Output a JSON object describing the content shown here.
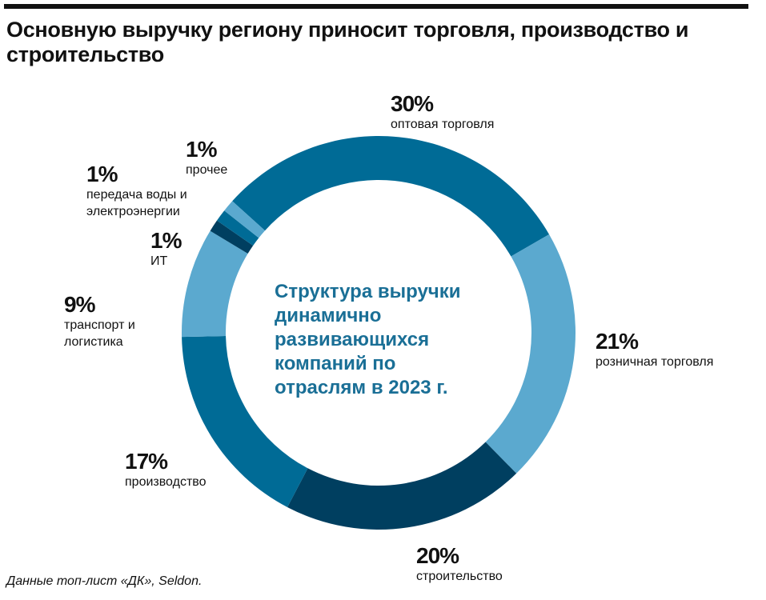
{
  "title": "Основную выручку региону приносит торговля, производство и строительство",
  "source": "Данные топ-лист «ДК», Seldon.",
  "chart_data": {
    "type": "pie",
    "donut": true,
    "center_label": "Структура выручки динамично развивающихся компаний по отраслям в 2023 г.",
    "slices": [
      {
        "label": "оптовая торговля",
        "value": 30,
        "value_label": "30%",
        "color": "#006b96"
      },
      {
        "label": "розничная торговля",
        "value": 21,
        "value_label": "21%",
        "color": "#5ba9cf"
      },
      {
        "label": "строительство",
        "value": 20,
        "value_label": "20%",
        "color": "#003f60"
      },
      {
        "label": "производство",
        "value": 17,
        "value_label": "17%",
        "color": "#006b96"
      },
      {
        "label": "транспорт и логистика",
        "value": 9,
        "value_label": "9%",
        "color": "#5ba9cf"
      },
      {
        "label": "ИТ",
        "value": 1,
        "value_label": "1%",
        "color": "#003f60"
      },
      {
        "label": "передача воды и электроэнергии",
        "value": 1,
        "value_label": "1%",
        "color": "#006b96"
      },
      {
        "label": "прочее",
        "value": 1,
        "value_label": "1%",
        "color": "#5ba9cf"
      }
    ]
  }
}
